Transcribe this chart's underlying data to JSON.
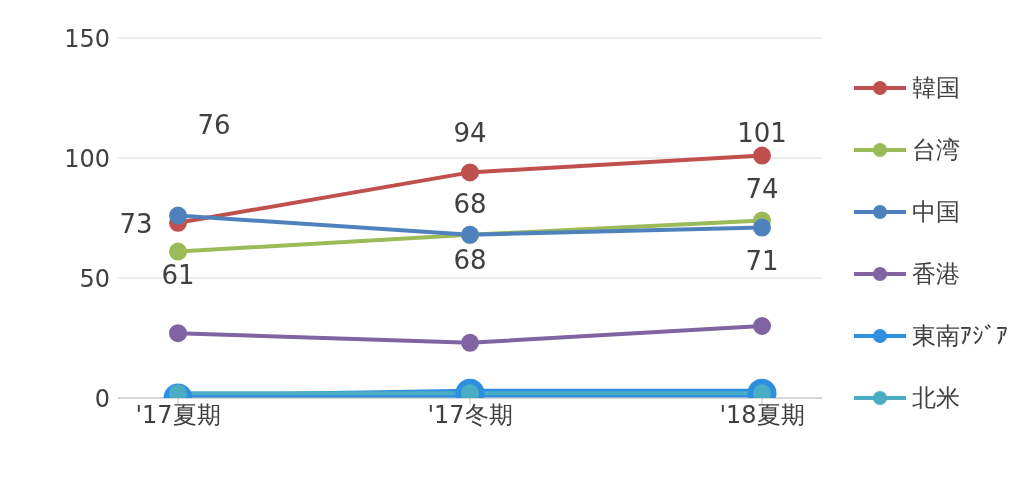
{
  "chart_data": {
    "type": "line",
    "categories": [
      "'17夏期",
      "'17冬期",
      "'18夏期"
    ],
    "series": [
      {
        "name": "韓国",
        "color": "#c0504d",
        "values": [
          73,
          94,
          101
        ],
        "value_labels": [
          "73",
          "94",
          "101"
        ]
      },
      {
        "name": "台湾",
        "color": "#9bbb59",
        "values": [
          61,
          68,
          74
        ],
        "value_labels": [
          "61",
          "68",
          "74"
        ]
      },
      {
        "name": "中国",
        "color": "#4f81bd",
        "values": [
          76,
          68,
          71
        ],
        "value_labels": [
          "76",
          "68",
          "71"
        ]
      },
      {
        "name": "香港",
        "color": "#8064a2",
        "values": [
          27,
          23,
          30
        ]
      },
      {
        "name": "東南ｱｼﾞｱ",
        "color": "#2e8fe0",
        "values": [
          0,
          2,
          2
        ]
      },
      {
        "name": "北米",
        "color": "#4bacc6",
        "values": [
          2,
          2,
          2
        ]
      }
    ],
    "ylim": [
      0,
      150
    ],
    "yticks": [
      0,
      50,
      100,
      150
    ],
    "grid": "y",
    "legend": "right",
    "marker": "circle",
    "line_style": "solid"
  }
}
